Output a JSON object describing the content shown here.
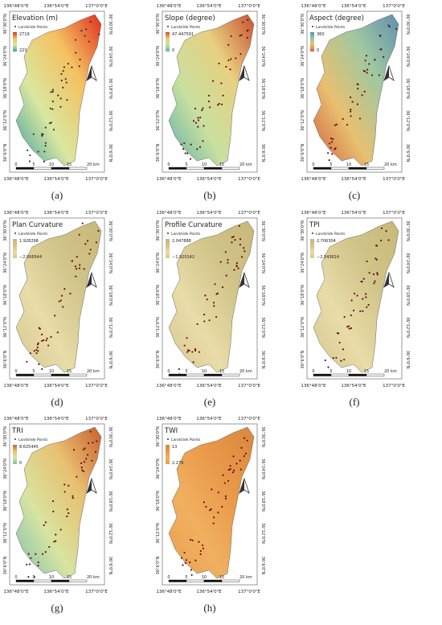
{
  "lon_labels": [
    "136°48'0\"E",
    "136°54'0\"E",
    "137°0'0\"E"
  ],
  "lat_labels": [
    "36°30'0\"N",
    "36°24'0\"N",
    "36°18'0\"N",
    "36°12'0\"N",
    "36°6'0\"N"
  ],
  "scale_labels": [
    "0",
    "5",
    "10",
    "15",
    "20 km"
  ],
  "legend_point_label": "Landslide Points",
  "panels": [
    {
      "title": "Elevation (m)",
      "max": "2719",
      "min": "223",
      "caption": "(a)",
      "ramp": [
        "#3fa0a0",
        "#d9e8a0",
        "#f5c060",
        "#e03020"
      ]
    },
    {
      "title": "Slope (degree)",
      "max": "47.447591",
      "min": "0",
      "caption": "(b)",
      "ramp": [
        "#5fb0a8",
        "#c8e0a0",
        "#e8d080",
        "#c85030"
      ]
    },
    {
      "title": "Aspect (degree)",
      "max": "360",
      "min": "0",
      "caption": "(c)",
      "ramp": [
        "#d06040",
        "#e8c070",
        "#a0c8a0",
        "#6090b0"
      ]
    },
    {
      "title": "Plan Curvature",
      "max": "1.928298",
      "min": "−2.006544",
      "caption": "(d)",
      "ramp": [
        "#d8c890",
        "#e8dca8",
        "#d0c488",
        "#c8b878"
      ]
    },
    {
      "title": "Profile Curvature",
      "max": "2.047888",
      "min": "−1.920142",
      "caption": "(e)",
      "ramp": [
        "#d8c890",
        "#e8dca8",
        "#d0c488",
        "#c8b878"
      ]
    },
    {
      "title": "TPI",
      "max": "2.706304",
      "min": "−2.543614",
      "caption": "(f)",
      "ramp": [
        "#d8c890",
        "#e8dca8",
        "#d0c488",
        "#c8b878"
      ]
    },
    {
      "title": "TRI",
      "max": "8.625445",
      "min": "0",
      "caption": "(g)",
      "ramp": [
        "#7cc0b0",
        "#d8e4a0",
        "#e8c070",
        "#c86030"
      ]
    },
    {
      "title": "TWI",
      "max": "13",
      "min": "2.279",
      "caption": "(h)",
      "ramp": [
        "#e8a050",
        "#f0b060",
        "#e89848",
        "#d88840"
      ]
    }
  ]
}
